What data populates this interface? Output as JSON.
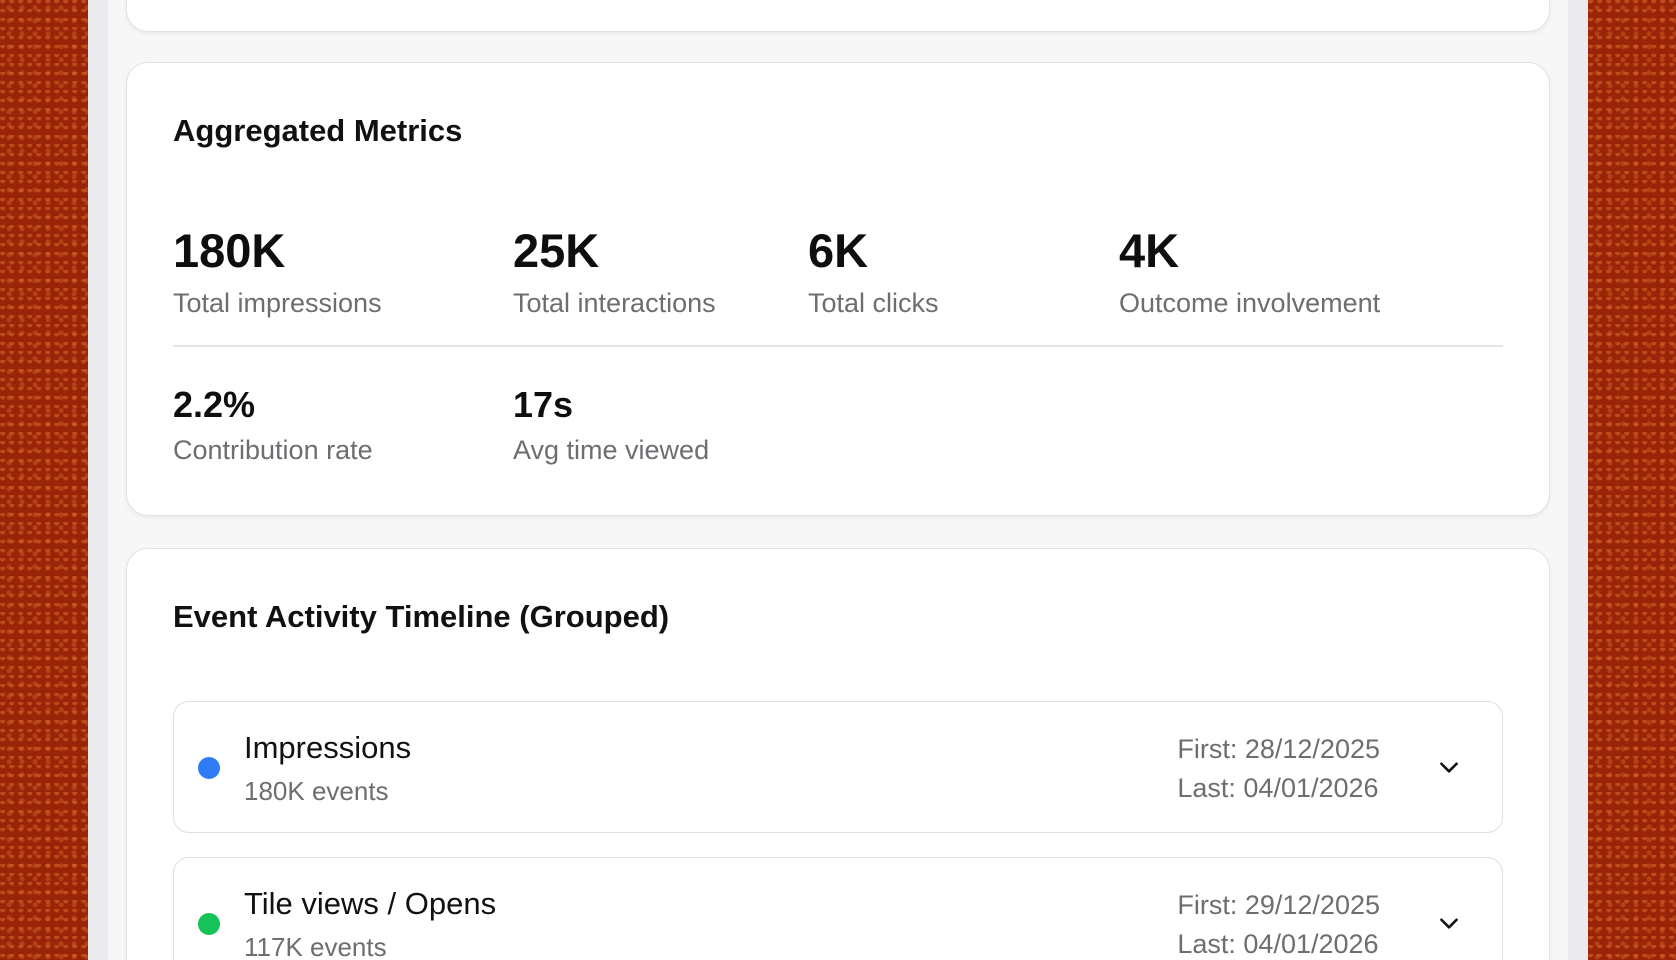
{
  "colors": {
    "impressions_dot": "#2f7cf6",
    "tile_views_dot": "#16c35a",
    "backdrop": "#9a2408"
  },
  "metrics_card": {
    "title": "Aggregated Metrics",
    "row1": [
      {
        "value": "180K",
        "label": "Total impressions"
      },
      {
        "value": "25K",
        "label": "Total interactions"
      },
      {
        "value": "6K",
        "label": "Total clicks"
      },
      {
        "value": "4K",
        "label": "Outcome involvement"
      }
    ],
    "row2": [
      {
        "value": "2.2%",
        "label": "Contribution rate"
      },
      {
        "value": "17s",
        "label": "Avg time viewed"
      }
    ]
  },
  "timeline_card": {
    "title": "Event Activity Timeline (Grouped)",
    "groups": [
      {
        "name": "Impressions",
        "count": "180K events",
        "first": "First: 28/12/2025",
        "last": "Last: 04/01/2026",
        "icon": "chevron-down-icon"
      },
      {
        "name": "Tile views / Opens",
        "count": "117K events",
        "first": "First: 29/12/2025",
        "last": "Last: 04/01/2026",
        "icon": "chevron-down-icon"
      }
    ]
  }
}
